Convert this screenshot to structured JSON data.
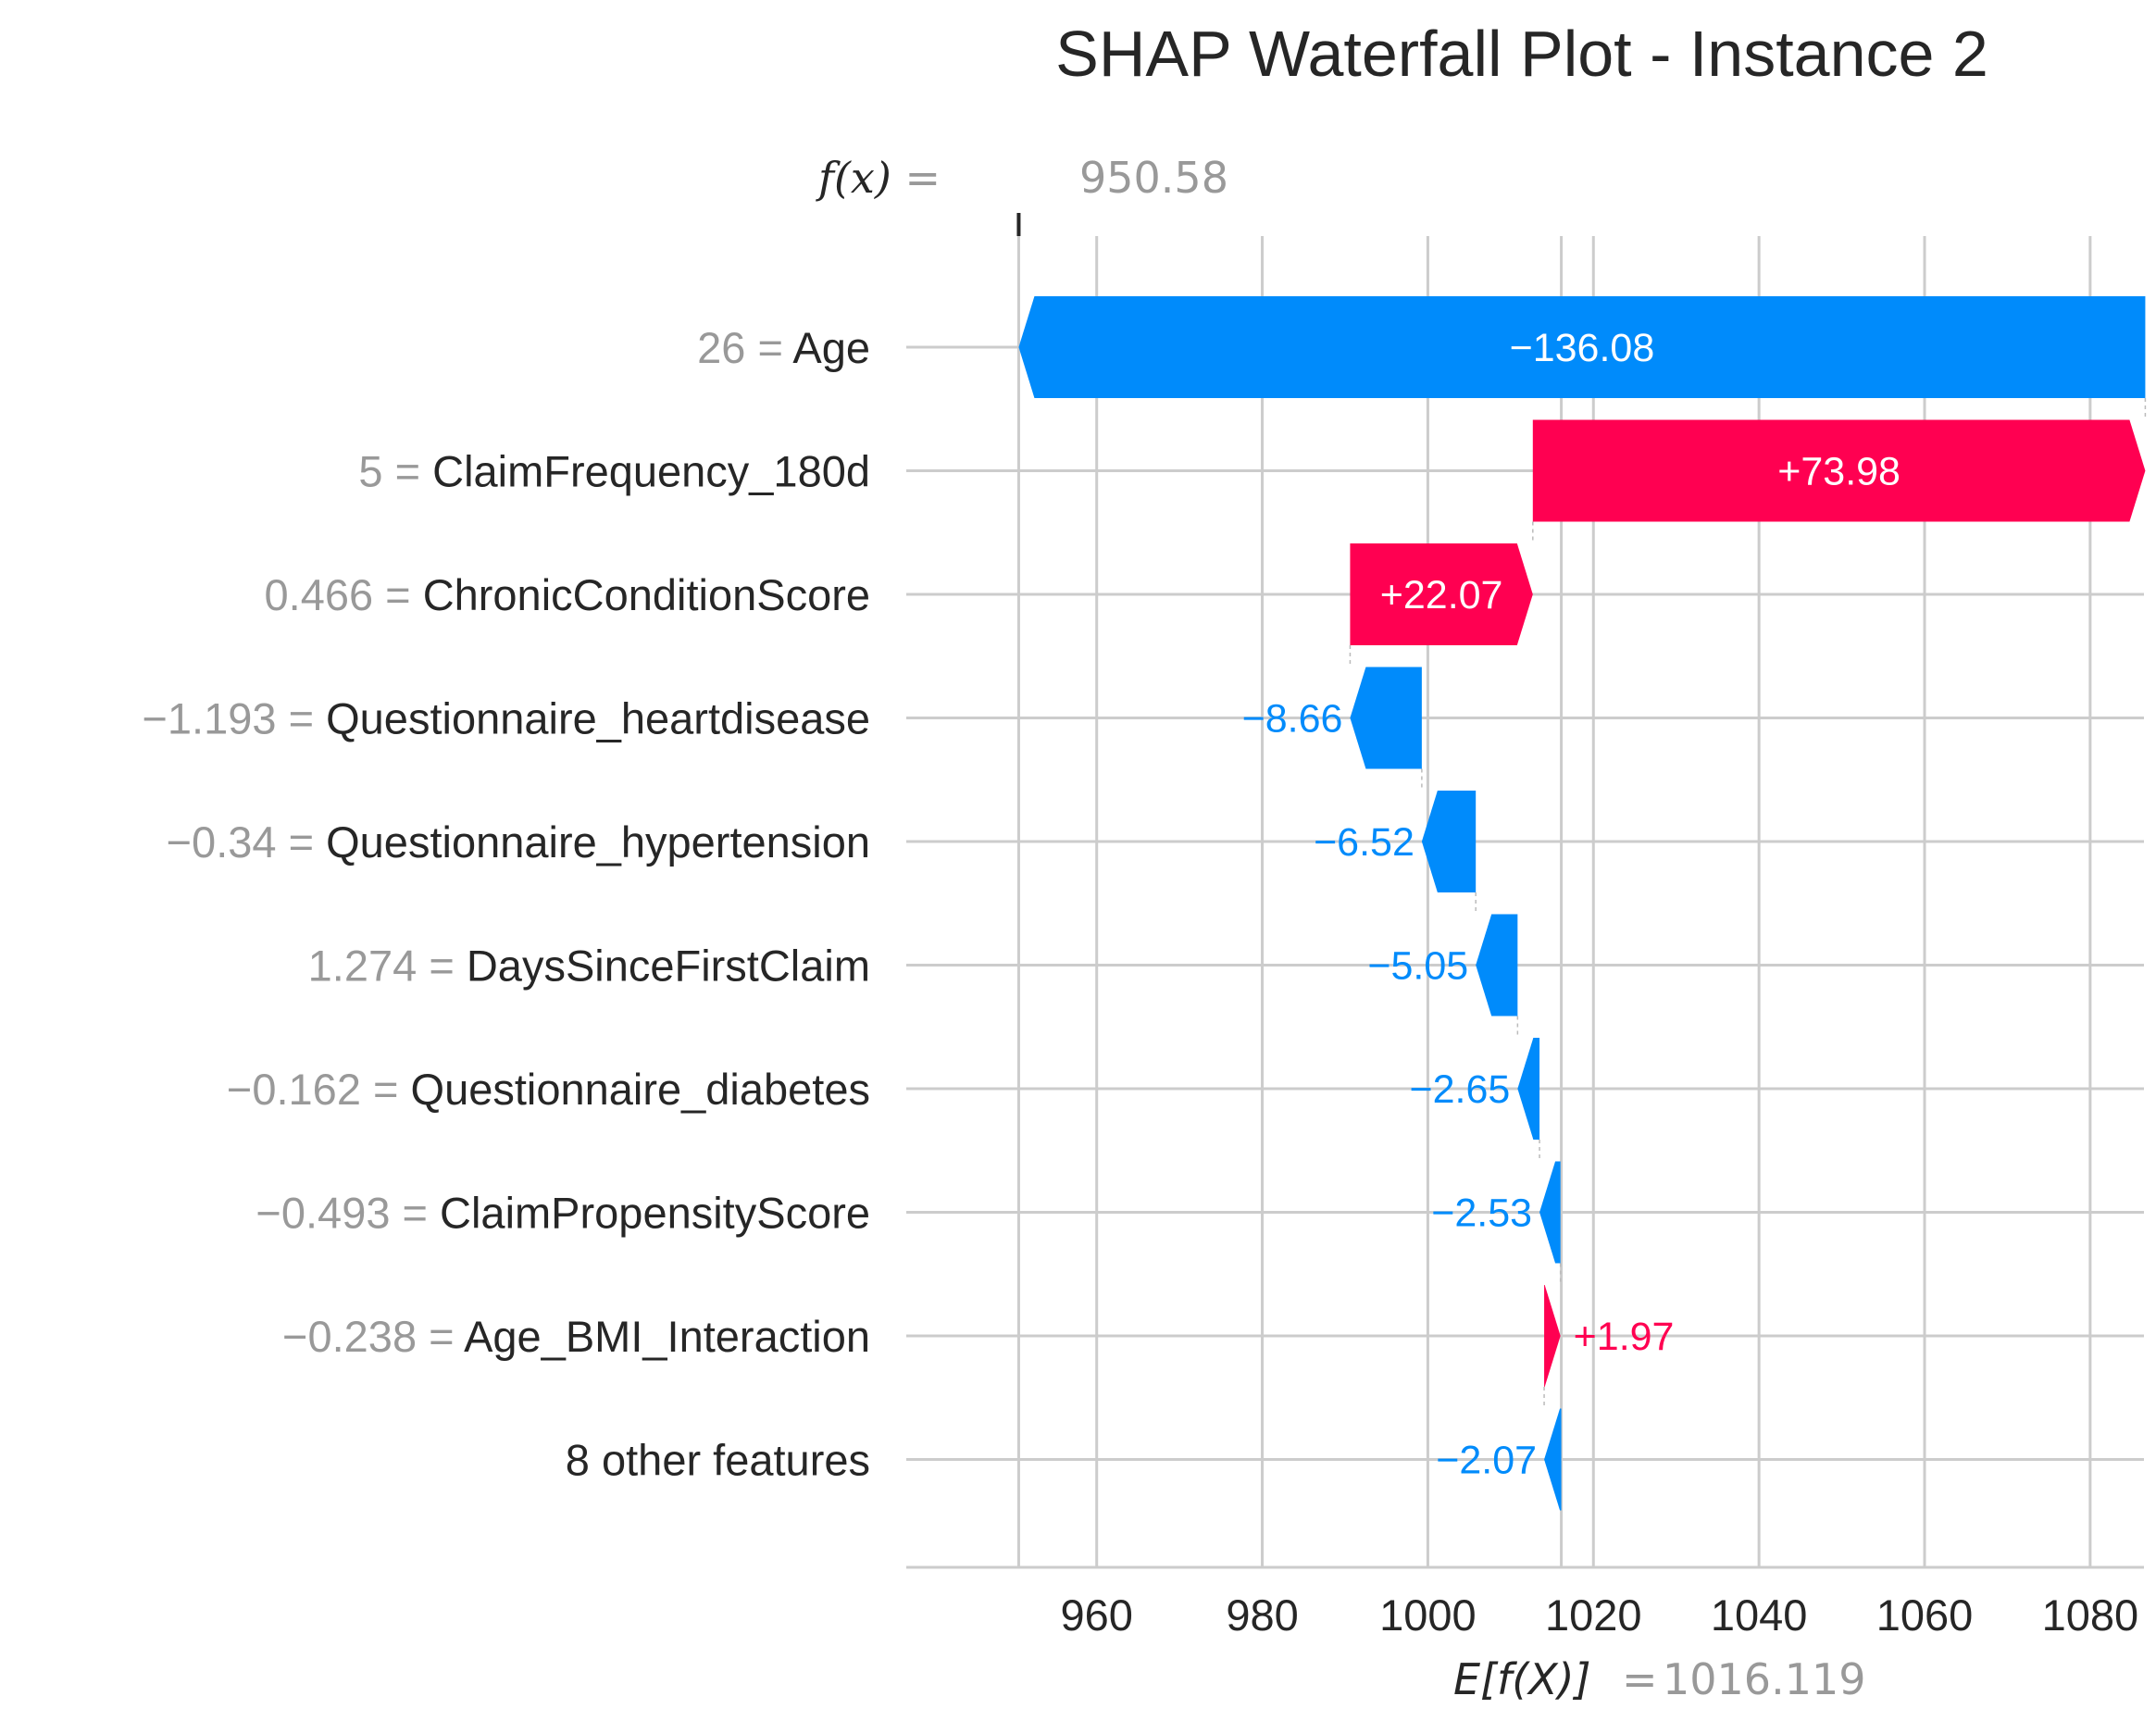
{
  "chart_data": {
    "type": "waterfall",
    "title": "SHAP Waterfall Plot - Instance 2",
    "fx_label": "f(x)",
    "fx_value": "950.58",
    "base_label": "E[f(X)]",
    "base_value_text": "1016.119",
    "base_value": 1016.119,
    "final_value": 950.58,
    "xlim": [
      937,
      1086.5
    ],
    "x_ticks": [
      960,
      980,
      1000,
      1020,
      1040,
      1060,
      1080
    ],
    "grid": true,
    "colors": {
      "positive": "#ff0051",
      "negative": "#008bfb",
      "muted": "#999999"
    },
    "features": [
      {
        "value": "26",
        "name": "Age",
        "shap": -136.08,
        "label": "−136.08"
      },
      {
        "value": "5",
        "name": "ClaimFrequency_180d",
        "shap": 73.98,
        "label": "+73.98"
      },
      {
        "value": "0.466",
        "name": "ChronicConditionScore",
        "shap": 22.07,
        "label": "+22.07"
      },
      {
        "value": "−1.193",
        "name": "Questionnaire_heartdisease",
        "shap": -8.66,
        "label": "−8.66"
      },
      {
        "value": "−0.34",
        "name": "Questionnaire_hypertension",
        "shap": -6.52,
        "label": "−6.52"
      },
      {
        "value": "1.274",
        "name": "DaysSinceFirstClaim",
        "shap": -5.05,
        "label": "−5.05"
      },
      {
        "value": "−0.162",
        "name": "Questionnaire_diabetes",
        "shap": -2.65,
        "label": "−2.65"
      },
      {
        "value": "−0.493",
        "name": "ClaimPropensityScore",
        "shap": -2.53,
        "label": "−2.53"
      },
      {
        "value": "−0.238",
        "name": "Age_BMI_Interaction",
        "shap": 1.97,
        "label": "+1.97"
      },
      {
        "value": "",
        "name": "8 other features",
        "shap": -2.07,
        "label": "−2.07"
      }
    ]
  }
}
